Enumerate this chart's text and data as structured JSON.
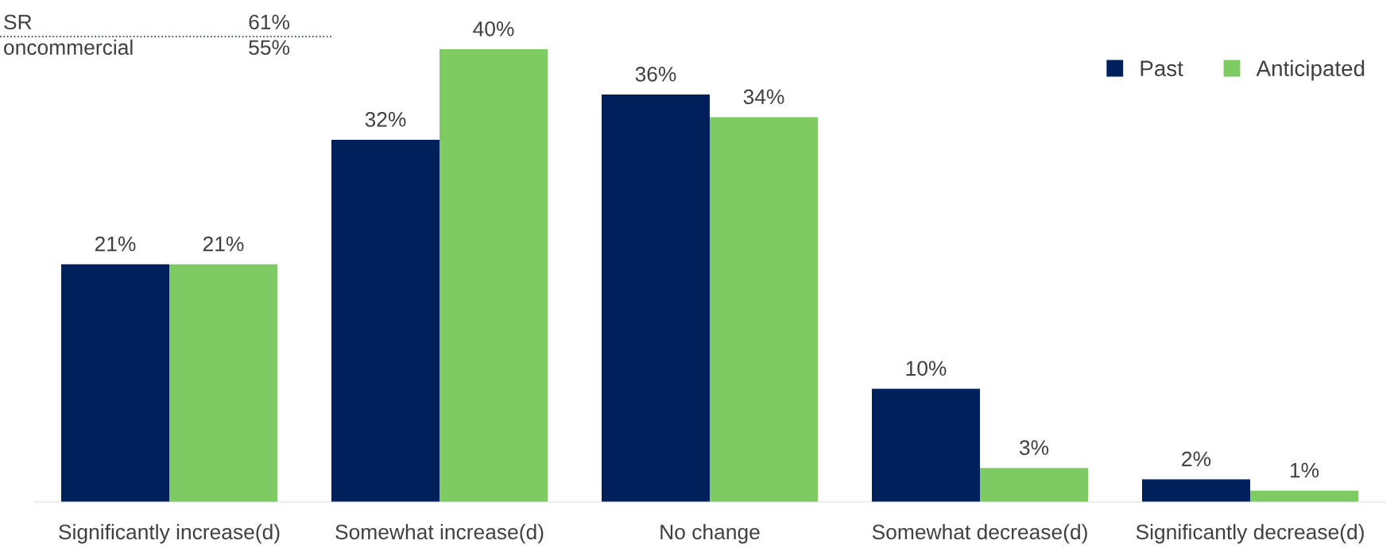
{
  "chart_data": {
    "type": "bar",
    "categories": [
      "Significantly increase(d)",
      "Somewhat increase(d)",
      "No change",
      "Somewhat decrease(d)",
      "Significantly decrease(d)"
    ],
    "series": [
      {
        "name": "Past",
        "color": "#00205b",
        "values": [
          21,
          32,
          36,
          10,
          2
        ],
        "value_labels": [
          "21%",
          "32%",
          "36%",
          "10%",
          "2%"
        ]
      },
      {
        "name": "Anticipated",
        "color": "#7ecb64",
        "values": [
          21,
          40,
          34,
          3,
          1
        ],
        "value_labels": [
          "21%",
          "40%",
          "34%",
          "3%",
          "1%"
        ]
      }
    ],
    "legend": "top right",
    "grid": false,
    "annotations": [
      "SR",
      "61%",
      "oncommercial",
      "55%"
    ]
  }
}
